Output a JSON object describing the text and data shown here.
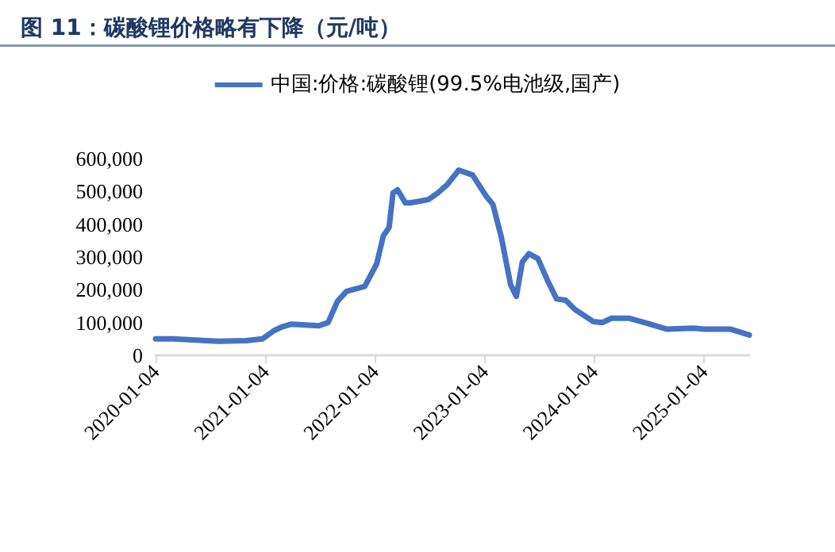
{
  "chart_data": {
    "type": "line",
    "title": "图 11：碳酸锂价格略有下降（元/吨）",
    "x": [
      "2020-01-04",
      "2020-03-01",
      "2020-08-01",
      "2020-11-01",
      "2020-12-25",
      "2021-02-01",
      "2021-03-01",
      "2021-04-01",
      "2021-07-01",
      "2021-08-01",
      "2021-09-01",
      "2021-10-01",
      "2021-12-01",
      "2022-01-10",
      "2022-02-01",
      "2022-02-20",
      "2022-03-05",
      "2022-03-20",
      "2022-04-15",
      "2022-05-01",
      "2022-06-01",
      "2022-07-01",
      "2022-08-01",
      "2022-09-01",
      "2022-10-10",
      "2022-11-25",
      "2023-01-10",
      "2023-02-01",
      "2023-03-01",
      "2023-04-01",
      "2023-04-20",
      "2023-05-10",
      "2023-06-01",
      "2023-07-01",
      "2023-08-01",
      "2023-09-01",
      "2023-10-01",
      "2023-11-01",
      "2024-01-01",
      "2024-02-01",
      "2024-03-01",
      "2024-05-01",
      "2024-07-01",
      "2024-09-01",
      "2024-12-01",
      "2025-01-04",
      "2025-04-01",
      "2025-06-04"
    ],
    "series": [
      {
        "name": "中国:价格:碳酸锂(99.5%电池级,国产)",
        "color": "#4472c4",
        "values": [
          50000,
          50000,
          43000,
          45000,
          50000,
          75000,
          87000,
          95000,
          90000,
          100000,
          165000,
          195000,
          210000,
          280000,
          365000,
          390000,
          495000,
          505000,
          465000,
          465000,
          470000,
          475000,
          495000,
          520000,
          565000,
          550000,
          485000,
          460000,
          360000,
          215000,
          180000,
          285000,
          310000,
          295000,
          230000,
          172000,
          168000,
          140000,
          103000,
          100000,
          113000,
          113000,
          97000,
          80000,
          83000,
          80000,
          80000,
          62000
        ]
      }
    ],
    "xlim": [
      "2020-01-04",
      "2025-06-04"
    ],
    "xticks": [
      "2020-01-04",
      "2021-01-04",
      "2022-01-04",
      "2023-01-04",
      "2024-01-04",
      "2025-01-04"
    ],
    "ylim": [
      0,
      600000
    ],
    "yticks": [
      0,
      {
        "value": 100000,
        "label": "100,000"
      },
      {
        "value": 200000,
        "label": "200,000"
      },
      {
        "value": 300000,
        "label": "300,000"
      },
      {
        "value": 400000,
        "label": "400,000"
      },
      {
        "value": 500000,
        "label": "500,000"
      },
      {
        "value": 600000,
        "label": "600,000"
      }
    ],
    "grid": false,
    "legend": "top",
    "marker": "none",
    "line_style": "solid"
  }
}
